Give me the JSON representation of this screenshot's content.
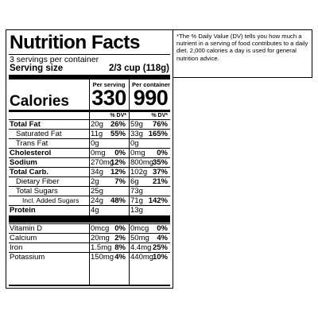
{
  "label": {
    "title": "Nutrition Facts",
    "servings": "3 servings per container",
    "serving_size_label": "Serving size",
    "serving_size_value": "2/3 cup (118g)",
    "per_serving_label": "Per serving",
    "per_container_label": "Per container",
    "calories_label": "Calories",
    "calories_serving": "330",
    "calories_container": "990",
    "dv_header": "% DV*",
    "rows": [
      {
        "name": "Total Fat",
        "bold": true,
        "indent": 0,
        "s_amt": "20g",
        "s_dv": "26%",
        "c_amt": "59g",
        "c_dv": "76%"
      },
      {
        "name": "Saturated Fat",
        "bold": false,
        "indent": 1,
        "s_amt": "11g",
        "s_dv": "55%",
        "c_amt": "33g",
        "c_dv": "165%"
      },
      {
        "name": "Trans Fat",
        "bold": false,
        "indent": 1,
        "s_amt": "0g",
        "s_dv": "",
        "c_amt": "0g",
        "c_dv": ""
      },
      {
        "name": "Cholesterol",
        "bold": true,
        "indent": 0,
        "s_amt": "0mg",
        "s_dv": "0%",
        "c_amt": "0mg",
        "c_dv": "0%"
      },
      {
        "name": "Sodium",
        "bold": true,
        "indent": 0,
        "s_amt": "270mg",
        "s_dv": "12%",
        "c_amt": "800mg",
        "c_dv": "35%"
      },
      {
        "name": "Total Carb.",
        "bold": true,
        "indent": 0,
        "s_amt": "34g",
        "s_dv": "12%",
        "c_amt": "102g",
        "c_dv": "37%"
      },
      {
        "name": "Dietary Fiber",
        "bold": false,
        "indent": 1,
        "s_amt": "2g",
        "s_dv": "7%",
        "c_amt": "6g",
        "c_dv": "21%"
      },
      {
        "name": "Total Sugars",
        "bold": false,
        "indent": 1,
        "s_amt": "25g",
        "s_dv": "",
        "c_amt": "73g",
        "c_dv": ""
      },
      {
        "name": "Incl. Added Sugars",
        "bold": false,
        "indent": 2,
        "s_amt": "24g",
        "s_dv": "48%",
        "c_amt": "71g",
        "c_dv": "142%"
      },
      {
        "name": "Protein",
        "bold": true,
        "indent": 0,
        "s_amt": "4g",
        "s_dv": "",
        "c_amt": "13g",
        "c_dv": ""
      },
      {
        "name": "Vitamin D",
        "bold": false,
        "indent": 0,
        "s_amt": "0mcg",
        "s_dv": "0%",
        "c_amt": "0mcg",
        "c_dv": "0%"
      },
      {
        "name": "Calcium",
        "bold": false,
        "indent": 0,
        "s_amt": "20mg",
        "s_dv": "2%",
        "c_amt": "50mg",
        "c_dv": "4%"
      },
      {
        "name": "Iron",
        "bold": false,
        "indent": 0,
        "s_amt": "1.5mg",
        "s_dv": "8%",
        "c_amt": "4.4mg",
        "c_dv": "25%"
      },
      {
        "name": "Potassium",
        "bold": false,
        "indent": 0,
        "s_amt": "150mg",
        "s_dv": "4%",
        "c_amt": "440mg",
        "c_dv": "10%"
      }
    ]
  },
  "footnote": "*The % Daily Value (DV) tells you how much a nutrient in a serving of food contributes to a daily diet. 2,000 calories a day is used for general nutrition advice."
}
